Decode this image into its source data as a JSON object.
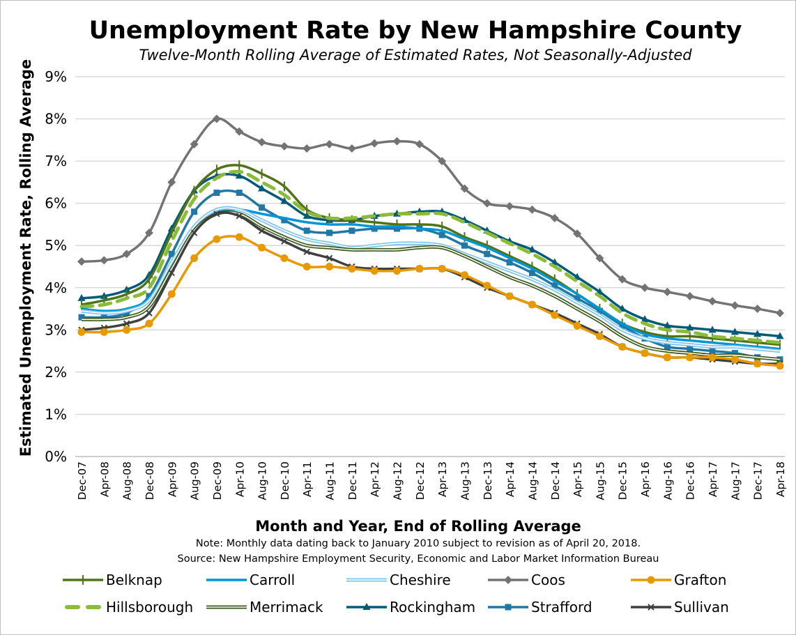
{
  "chart_data": {
    "type": "line",
    "title": "Unemployment Rate by New Hampshire County",
    "subtitle": "Twelve-Month Rolling Average of Estimated Rates, Not Seasonally-Adjusted",
    "xlabel": "Month and Year, End of Rolling Average",
    "ylabel": "Estimated Unemployment Rate, Rolling Average",
    "notes": [
      "Note: Monthly data dating back to January 2010 subject to revision as of April 20, 2018.",
      "Source: New Hampshire Employment Security, Economic and Labor Market Information Bureau"
    ],
    "ylim": [
      0,
      9
    ],
    "yticks": [
      "0%",
      "1%",
      "2%",
      "3%",
      "4%",
      "5%",
      "6%",
      "7%",
      "8%",
      "9%"
    ],
    "grid": true,
    "legend_position": "bottom",
    "categories": [
      "Dec-07",
      "Apr-08",
      "Aug-08",
      "Dec-08",
      "Apr-09",
      "Aug-09",
      "Dec-09",
      "Apr-10",
      "Aug-10",
      "Dec-10",
      "Apr-11",
      "Aug-11",
      "Dec-11",
      "Apr-12",
      "Aug-12",
      "Dec-12",
      "Apr-13",
      "Aug-13",
      "Dec-13",
      "Apr-14",
      "Aug-14",
      "Dec-14",
      "Apr-15",
      "Aug-15",
      "Dec-15",
      "Apr-16",
      "Aug-16",
      "Dec-16",
      "Apr-17",
      "Aug-17",
      "Dec-17",
      "Apr-18"
    ],
    "series": [
      {
        "name": "Belknap",
        "color": "#4e7318",
        "marker": "plus",
        "values": [
          3.6,
          3.7,
          3.85,
          4.2,
          5.3,
          6.3,
          6.8,
          6.9,
          6.7,
          6.4,
          5.85,
          5.65,
          5.6,
          5.55,
          5.5,
          5.5,
          5.45,
          5.2,
          5.0,
          4.75,
          4.5,
          4.2,
          3.85,
          3.5,
          3.15,
          2.95,
          2.85,
          2.85,
          2.8,
          2.75,
          2.7,
          2.65
        ]
      },
      {
        "name": "Carroll",
        "color": "#0096d6",
        "marker": "none",
        "values": [
          3.5,
          3.45,
          3.5,
          3.75,
          4.6,
          5.4,
          5.8,
          5.85,
          5.75,
          5.65,
          5.55,
          5.5,
          5.5,
          5.45,
          5.45,
          5.4,
          5.35,
          5.15,
          4.95,
          4.7,
          4.45,
          4.15,
          3.85,
          3.5,
          3.15,
          2.9,
          2.8,
          2.75,
          2.7,
          2.65,
          2.6,
          2.55
        ]
      },
      {
        "name": "Cheshire",
        "color": "#7cc4ea",
        "marker": "double",
        "values": [
          3.45,
          3.4,
          3.45,
          3.7,
          4.6,
          5.45,
          5.85,
          5.85,
          5.6,
          5.35,
          5.15,
          5.05,
          4.95,
          5.0,
          5.05,
          5.05,
          5.0,
          4.8,
          4.6,
          4.4,
          4.2,
          3.95,
          3.65,
          3.35,
          3.0,
          2.8,
          2.7,
          2.65,
          2.6,
          2.6,
          2.55,
          2.5
        ]
      },
      {
        "name": "Coos",
        "color": "#737373",
        "marker": "diamond",
        "values": [
          4.62,
          4.65,
          4.8,
          5.3,
          6.5,
          7.4,
          8.0,
          7.7,
          7.45,
          7.35,
          7.3,
          7.4,
          7.3,
          7.42,
          7.47,
          7.4,
          7.0,
          6.35,
          6.0,
          5.93,
          5.85,
          5.65,
          5.28,
          4.7,
          4.2,
          4.0,
          3.9,
          3.8,
          3.68,
          3.58,
          3.5,
          3.4
        ]
      },
      {
        "name": "Grafton",
        "color": "#e69a00",
        "marker": "circle",
        "values": [
          2.95,
          2.95,
          3.0,
          3.15,
          3.85,
          4.7,
          5.15,
          5.2,
          4.95,
          4.7,
          4.5,
          4.5,
          4.45,
          4.4,
          4.4,
          4.45,
          4.45,
          4.3,
          4.05,
          3.8,
          3.6,
          3.35,
          3.1,
          2.85,
          2.6,
          2.45,
          2.35,
          2.35,
          2.35,
          2.3,
          2.2,
          2.15
        ]
      },
      {
        "name": "Hillsborough",
        "color": "#8cbb3a",
        "marker": "dash",
        "values": [
          3.55,
          3.6,
          3.75,
          4.0,
          5.1,
          6.1,
          6.6,
          6.75,
          6.5,
          6.2,
          5.8,
          5.65,
          5.65,
          5.7,
          5.75,
          5.75,
          5.75,
          5.55,
          5.3,
          5.05,
          4.8,
          4.5,
          4.15,
          3.8,
          3.4,
          3.15,
          3.0,
          2.95,
          2.85,
          2.8,
          2.75,
          2.7
        ]
      },
      {
        "name": "Merrimack",
        "color": "#3d5a1e",
        "marker": "double",
        "values": [
          3.25,
          3.25,
          3.3,
          3.55,
          4.45,
          5.35,
          5.75,
          5.75,
          5.45,
          5.2,
          5.0,
          4.95,
          4.9,
          4.9,
          4.9,
          4.95,
          4.95,
          4.75,
          4.5,
          4.25,
          4.05,
          3.8,
          3.5,
          3.2,
          2.85,
          2.6,
          2.5,
          2.45,
          2.4,
          2.4,
          2.35,
          2.3
        ]
      },
      {
        "name": "Rockingham",
        "color": "#005a78",
        "marker": "triangle",
        "values": [
          3.75,
          3.8,
          3.95,
          4.3,
          5.4,
          6.3,
          6.65,
          6.65,
          6.35,
          6.05,
          5.7,
          5.6,
          5.6,
          5.7,
          5.75,
          5.8,
          5.8,
          5.6,
          5.35,
          5.1,
          4.9,
          4.6,
          4.25,
          3.9,
          3.5,
          3.25,
          3.1,
          3.05,
          3.0,
          2.95,
          2.9,
          2.85
        ]
      },
      {
        "name": "Strafford",
        "color": "#2178a4",
        "marker": "square",
        "values": [
          3.3,
          3.3,
          3.4,
          3.8,
          4.8,
          5.8,
          6.25,
          6.25,
          5.9,
          5.6,
          5.35,
          5.3,
          5.35,
          5.4,
          5.4,
          5.4,
          5.25,
          5.0,
          4.8,
          4.6,
          4.35,
          4.05,
          3.75,
          3.45,
          3.1,
          2.8,
          2.6,
          2.55,
          2.5,
          2.45,
          2.35,
          2.3
        ]
      },
      {
        "name": "Sullivan",
        "color": "#3f3f3f",
        "marker": "x",
        "values": [
          3.0,
          3.05,
          3.15,
          3.4,
          4.35,
          5.3,
          5.75,
          5.7,
          5.35,
          5.1,
          4.85,
          4.7,
          4.5,
          4.45,
          4.45,
          4.45,
          4.45,
          4.25,
          4.0,
          3.8,
          3.6,
          3.4,
          3.15,
          2.9,
          2.6,
          2.45,
          2.35,
          2.35,
          2.3,
          2.25,
          2.2,
          2.2
        ]
      }
    ]
  }
}
